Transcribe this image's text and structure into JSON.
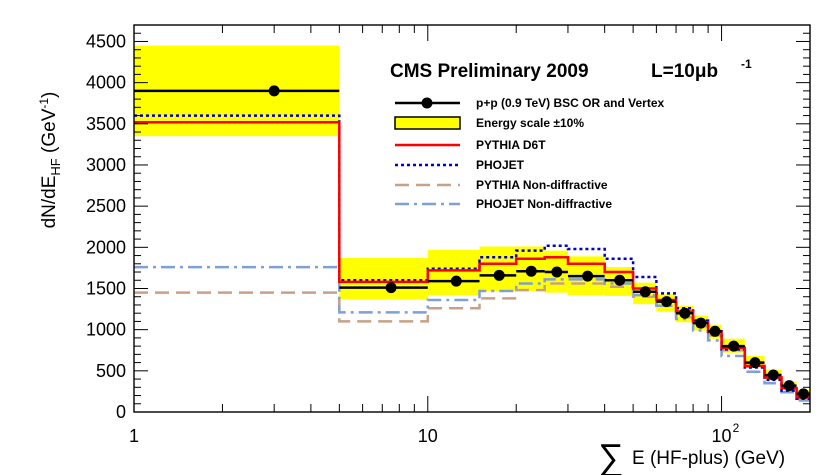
{
  "chart_data": {
    "type": "line",
    "title": "CMS Preliminary 2009",
    "title_lumi": "L=10μb",
    "title_lumi_exp": "-1",
    "xlabel_sum": "∑",
    "xlabel": "E (HF-plus) (GeV)",
    "ylabel_main": "dN/dE",
    "ylabel_sub": "HF",
    "ylabel_unit": " (GeV",
    "ylabel_unit_exp": "-1",
    "ylabel_close": ")",
    "x_scale": "log",
    "xlim": [
      1,
      200
    ],
    "ylim": [
      0,
      4700
    ],
    "x_ticks": [
      {
        "label": "1",
        "value": 1
      },
      {
        "label": "10",
        "value": 10
      },
      {
        "label": "10",
        "exp": "2",
        "value": 100
      }
    ],
    "y_ticks": [
      "0",
      "500",
      "1000",
      "1500",
      "2000",
      "2500",
      "3000",
      "3500",
      "4000",
      "4500"
    ],
    "legend_position": "top-right",
    "legend": {
      "data": "p+p (0.9 TeV) BSC OR and Vertex",
      "band": "Energy scale ±10%",
      "pythia": "PYTHIA D6T",
      "phojet": "PHOJET",
      "pythia_nd": "PYTHIA Non-diffractive",
      "phojet_nd": "PHOJET Non-diffractive"
    },
    "colors": {
      "data": "#000000",
      "band": "#ffff00",
      "pythia": "#ff0000",
      "phojet": "#0000cc",
      "pythia_nd": "#c8a088",
      "phojet_nd": "#7f9fd8"
    },
    "bin_edges": [
      1,
      5,
      10,
      15,
      20,
      25,
      30,
      40,
      50,
      60,
      70,
      80,
      90,
      100,
      120,
      140,
      160,
      180,
      200
    ],
    "data_points": {
      "x": [
        3,
        7.5,
        12.5,
        17.5,
        22.5,
        27.5,
        35,
        45,
        55,
        65,
        75,
        85,
        95,
        110,
        130,
        150,
        170,
        190
      ],
      "y": [
        3900,
        1510,
        1590,
        1660,
        1710,
        1700,
        1650,
        1600,
        1460,
        1340,
        1200,
        1080,
        980,
        800,
        600,
        450,
        320,
        220
      ]
    },
    "band": {
      "low": [
        3350,
        1370,
        1420,
        1470,
        1470,
        1450,
        1420,
        1410,
        1310,
        1220,
        1090,
        990,
        890,
        720,
        540,
        400,
        280,
        170
      ],
      "high": [
        4450,
        1870,
        1970,
        2010,
        2010,
        1960,
        1890,
        1760,
        1570,
        1430,
        1290,
        1170,
        1060,
        890,
        680,
        510,
        370,
        270
      ]
    },
    "series": [
      {
        "name": "PYTHIA D6T",
        "values": [
          3520,
          1580,
          1720,
          1800,
          1860,
          1880,
          1800,
          1700,
          1500,
          1360,
          1220,
          1090,
          970,
          780,
          560,
          420,
          290,
          180
        ]
      },
      {
        "name": "PHOJET",
        "values": [
          3600,
          1600,
          1740,
          1880,
          1960,
          2020,
          1980,
          1860,
          1640,
          1440,
          1260,
          1110,
          980,
          760,
          540,
          390,
          260,
          160
        ]
      },
      {
        "name": "PYTHIA Non-diffractive",
        "values": [
          1450,
          1100,
          1260,
          1380,
          1480,
          1560,
          1560,
          1520,
          1400,
          1290,
          1150,
          1040,
          930,
          750,
          550,
          410,
          290,
          170
        ]
      },
      {
        "name": "PHOJET Non-diffractive",
        "values": [
          1760,
          1210,
          1360,
          1470,
          1560,
          1610,
          1610,
          1560,
          1420,
          1290,
          1130,
          990,
          870,
          680,
          490,
          350,
          240,
          140
        ]
      }
    ]
  }
}
